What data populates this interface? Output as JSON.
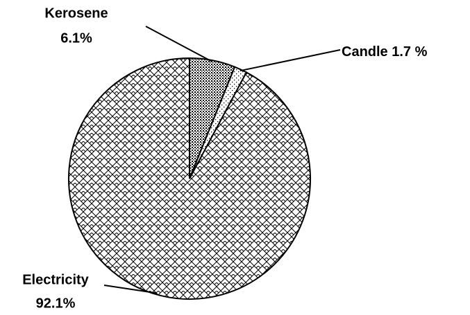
{
  "chart_data": {
    "type": "pie",
    "categories": [
      "Kerosene",
      "Candle",
      "Electricity"
    ],
    "values": [
      6.1,
      1.7,
      92.1
    ],
    "value_labels": [
      "6.1%",
      "1.7 %",
      "92.1%"
    ],
    "patterns": [
      "dots",
      "sparse-dots",
      "crosshatch"
    ]
  }
}
